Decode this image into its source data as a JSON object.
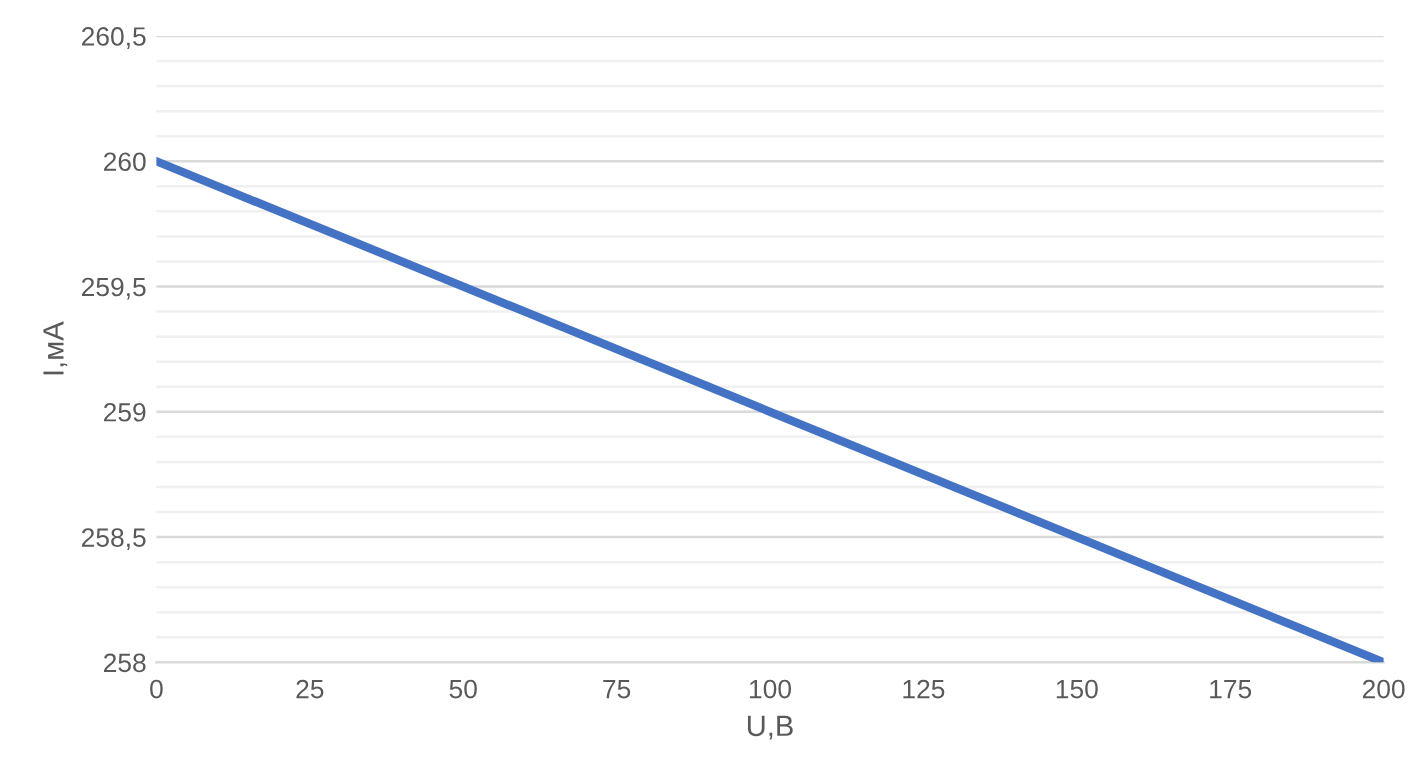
{
  "chart_data": {
    "type": "line",
    "xlabel": "U,B",
    "ylabel": "I,мА",
    "x": [
      0,
      100,
      200
    ],
    "series": [
      {
        "color": "#4472c4",
        "values": [
          260,
          259,
          258
        ]
      }
    ],
    "xlim": [
      0,
      200
    ],
    "xticks": [
      0,
      25,
      50,
      75,
      100,
      125,
      150,
      175,
      200
    ],
    "ylim": [
      258,
      260.5
    ],
    "yticks": [
      {
        "value": 258,
        "label": "258"
      },
      {
        "value": 258.1,
        "label": null
      },
      {
        "value": 258.2,
        "label": null
      },
      {
        "value": 258.3,
        "label": null
      },
      {
        "value": 258.4,
        "label": null
      },
      {
        "value": 258.5,
        "label": "258,5"
      },
      {
        "value": 258.6,
        "label": null
      },
      {
        "value": 258.7,
        "label": null
      },
      {
        "value": 258.8,
        "label": null
      },
      {
        "value": 258.9,
        "label": null
      },
      {
        "value": 259,
        "label": "259"
      },
      {
        "value": 259.1,
        "label": null
      },
      {
        "value": 259.2,
        "label": null
      },
      {
        "value": 259.3,
        "label": null
      },
      {
        "value": 259.4,
        "label": null
      },
      {
        "value": 259.5,
        "label": "259,5"
      },
      {
        "value": 259.6,
        "label": null
      },
      {
        "value": 259.7,
        "label": null
      },
      {
        "value": 259.8,
        "label": null
      },
      {
        "value": 259.9,
        "label": null
      },
      {
        "value": 260,
        "label": "260"
      },
      {
        "value": 260.1,
        "label": null
      },
      {
        "value": 260.2,
        "label": null
      },
      {
        "value": 260.3,
        "label": null
      },
      {
        "value": 260.4,
        "label": null
      },
      {
        "value": 260.5,
        "label": "260,5"
      }
    ],
    "grid": "y",
    "marker": "none",
    "line_style": "solid"
  }
}
